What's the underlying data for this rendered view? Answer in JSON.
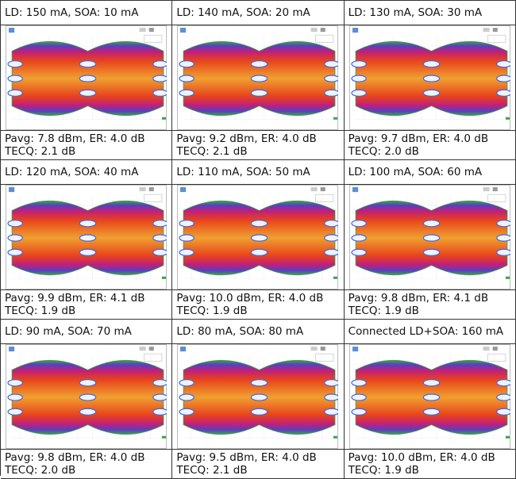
{
  "cells": [
    {
      "header": "LD: 150 mA, SOA: 10 mA",
      "line1": "Pavg: 7.8 dBm, ER: 4.0 dB",
      "line2": "TECQ: 2.1 dB"
    },
    {
      "header": "LD: 140 mA, SOA: 20 mA",
      "line1": "Pavg: 9.2 dBm, ER: 4.0 dB",
      "line2": "TECQ: 2.1 dB"
    },
    {
      "header": "LD: 130 mA, SOA: 30 mA",
      "line1": "Pavg: 9.7 dBm, ER: 4.0 dB",
      "line2": "TECQ: 2.0 dB"
    },
    {
      "header": "LD: 120 mA, SOA: 40 mA",
      "line1": "Pavg: 9.9 dBm, ER: 4.1 dB",
      "line2": "TECQ: 1.9 dB"
    },
    {
      "header": "LD: 110 mA, SOA: 50 mA",
      "line1": "Pavg: 10.0 dBm, ER: 4.0 dB",
      "line2": "TECQ: 1.9 dB"
    },
    {
      "header": "LD: 100 mA, SOA: 60 mA",
      "line1": "Pavg: 9.8 dBm, ER: 4.1 dB",
      "line2": "TECQ: 1.9 dB"
    },
    {
      "header": "LD: 90 mA, SOA: 70 mA",
      "line1": "Pavg: 9.8 dBm, ER: 4.0 dB",
      "line2": "TECQ: 2.0 dB"
    },
    {
      "header": "LD: 80 mA, SOA: 80 mA",
      "line1": "Pavg: 9.5 dBm, ER: 4.0 dB",
      "line2": "TECQ: 2.1 dB"
    },
    {
      "header": "Connected LD+SOA: 160 mA",
      "line1": "Pavg: 10.0 dBm, ER: 4.0 dB",
      "line2": "TECQ: 1.9 dB"
    }
  ]
}
